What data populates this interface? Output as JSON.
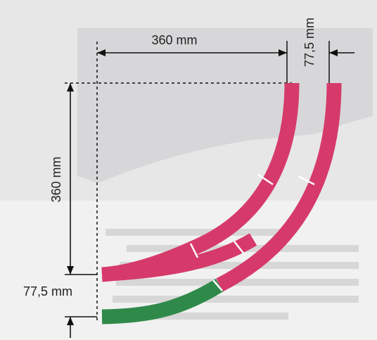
{
  "dimensions": {
    "top_width": "360 mm",
    "right_offset": "77,5 mm",
    "left_height": "360 mm",
    "bottom_offset": "77,5 mm"
  },
  "colors": {
    "track_pink": "#d63a6b",
    "track_green": "#2f8a4a",
    "dimension_line": "#111111",
    "background_gray": "#d9d9db"
  }
}
